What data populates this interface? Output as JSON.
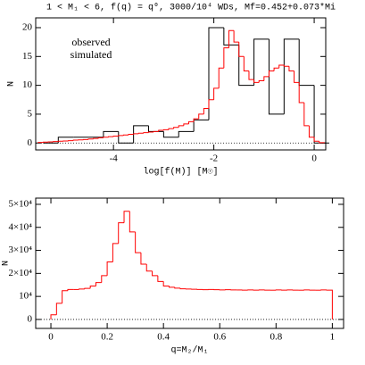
{
  "chart_data": [
    {
      "type": "histogram",
      "title": "1 < M₁ < 6, f(q) = q⁰, 3000/10⁴ WDs, Mf=0.452+0.073*Mi",
      "xlabel": "log[f(M)] [M☉]",
      "ylabel": "N",
      "xlim": [
        -5.55,
        0.23
      ],
      "ylim": [
        -1.2,
        21.7
      ],
      "xticks": [
        -4,
        -2,
        0
      ],
      "yticks": [
        0,
        5,
        10,
        15,
        20
      ],
      "legend": "upper left",
      "series": [
        {
          "name": "observed",
          "color": "#000000",
          "bins": [
            -5.4,
            -5.1,
            -4.8,
            -4.5,
            -4.2,
            -3.9,
            -3.6,
            -3.3,
            -3.0,
            -2.7,
            -2.4,
            -2.1,
            -1.8,
            -1.5,
            -1.2,
            -0.9,
            -0.6,
            -0.3,
            0,
            0.3
          ],
          "values": [
            0,
            1,
            1,
            1,
            2,
            0,
            3,
            2,
            1,
            2,
            4,
            20,
            17,
            10,
            18,
            5,
            18,
            10,
            0
          ]
        },
        {
          "name": "simulated",
          "color": "#ff0000",
          "bins": [
            -5.5,
            -5.4,
            -5.3,
            -5.2,
            -5.1,
            -5.0,
            -4.9,
            -4.8,
            -4.7,
            -4.6,
            -4.5,
            -4.4,
            -4.3,
            -4.2,
            -4.1,
            -4.0,
            -3.9,
            -3.8,
            -3.7,
            -3.6,
            -3.5,
            -3.4,
            -3.3,
            -3.2,
            -3.1,
            -3.0,
            -2.9,
            -2.8,
            -2.7,
            -2.6,
            -2.5,
            -2.4,
            -2.3,
            -2.2,
            -2.1,
            -2.0,
            -1.9,
            -1.8,
            -1.7,
            -1.6,
            -1.5,
            -1.4,
            -1.3,
            -1.2,
            -1.1,
            -1.0,
            -0.9,
            -0.8,
            -0.7,
            -0.6,
            -0.5,
            -0.4,
            -0.3,
            -0.2,
            -0.1,
            0,
            0.1,
            0.2
          ],
          "values": [
            0.1,
            0.15,
            0.2,
            0.25,
            0.3,
            0.35,
            0.4,
            0.5,
            0.55,
            0.6,
            0.7,
            0.8,
            0.9,
            1.0,
            1.1,
            1.2,
            1.3,
            1.4,
            1.5,
            1.6,
            1.7,
            1.8,
            1.9,
            2.0,
            2.2,
            2.3,
            2.5,
            2.7,
            3.0,
            3.3,
            3.7,
            4.2,
            5.0,
            6.0,
            7.5,
            9.5,
            13,
            16.5,
            19.5,
            17.5,
            15,
            12.5,
            11,
            10.5,
            10.8,
            11.5,
            12.5,
            13,
            13.5,
            13.3,
            12.5,
            10.5,
            7,
            3,
            1,
            0.3,
            0.05
          ]
        }
      ]
    },
    {
      "type": "histogram",
      "xlabel": "q=M₂/M₁",
      "ylabel": "N",
      "xlim": [
        -0.054,
        1.04
      ],
      "ylim": [
        -3900,
        52700
      ],
      "xticks": [
        0,
        0.2,
        0.4,
        0.6,
        0.8,
        1
      ],
      "yticks": [
        0,
        {
          "value": 10000,
          "label": "10⁴"
        },
        {
          "value": 20000,
          "label": "2×10⁴"
        },
        {
          "value": 30000,
          "label": "3×10⁴"
        },
        {
          "value": 40000,
          "label": "4×10⁴"
        },
        {
          "value": 50000,
          "label": "5×10⁴"
        }
      ],
      "series": [
        {
          "color": "#ff0000",
          "bins": [
            0,
            0.02,
            0.04,
            0.06,
            0.08,
            0.1,
            0.12,
            0.14,
            0.16,
            0.18,
            0.2,
            0.22,
            0.24,
            0.26,
            0.28,
            0.3,
            0.32,
            0.34,
            0.36,
            0.38,
            0.4,
            0.42,
            0.44,
            0.46,
            0.48,
            0.5,
            0.52,
            0.54,
            0.56,
            0.58,
            0.6,
            0.62,
            0.64,
            0.66,
            0.68,
            0.7,
            0.72,
            0.74,
            0.76,
            0.78,
            0.8,
            0.82,
            0.84,
            0.86,
            0.88,
            0.9,
            0.92,
            0.94,
            0.96,
            0.98,
            1
          ],
          "values": [
            2000,
            7000,
            12500,
            13000,
            13000,
            13200,
            13500,
            14500,
            16000,
            19000,
            25000,
            33000,
            42000,
            47000,
            38000,
            29000,
            24000,
            21000,
            19000,
            16500,
            14500,
            14000,
            13600,
            13300,
            13200,
            13100,
            13000,
            12900,
            13000,
            12900,
            12800,
            12900,
            12800,
            12800,
            12700,
            12800,
            12700,
            12800,
            12700,
            12700,
            12800,
            12700,
            12800,
            12700,
            12700,
            12800,
            12700,
            12700,
            12800,
            12700
          ]
        }
      ]
    }
  ]
}
